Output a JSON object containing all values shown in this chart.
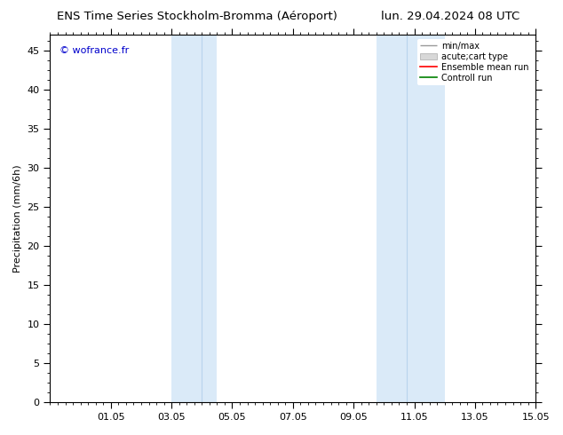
{
  "title_left": "ENS Time Series Stockholm-Bromma (Aéroport)",
  "title_right": "lun. 29.04.2024 08 UTC",
  "ylabel": "Precipitation (mm/6h)",
  "watermark": "© wofrance.fr",
  "xmin": 0,
  "xmax": 16,
  "ymin": 0,
  "ymax": 47,
  "yticks": [
    0,
    5,
    10,
    15,
    20,
    25,
    30,
    35,
    40,
    45
  ],
  "xtick_positions": [
    2,
    4,
    6,
    8,
    10,
    12,
    14,
    16
  ],
  "xtick_labels": [
    "01.05",
    "03.05",
    "05.05",
    "07.05",
    "09.05",
    "11.05",
    "13.05",
    "15.05"
  ],
  "shaded_regions": [
    {
      "xmin": 4.0,
      "xmax": 5.0,
      "color": "#daeaf8"
    },
    {
      "xmin": 5.0,
      "xmax": 5.5,
      "color": "#daeaf8"
    },
    {
      "xmin": 10.75,
      "xmax": 11.75,
      "color": "#daeaf8"
    },
    {
      "xmin": 11.75,
      "xmax": 13.0,
      "color": "#daeaf8"
    }
  ],
  "background_color": "#ffffff",
  "plot_bg_color": "#ffffff",
  "title_fontsize": 9.5,
  "axis_fontsize": 8,
  "watermark_color": "#0000cc",
  "tick_color": "#000000"
}
